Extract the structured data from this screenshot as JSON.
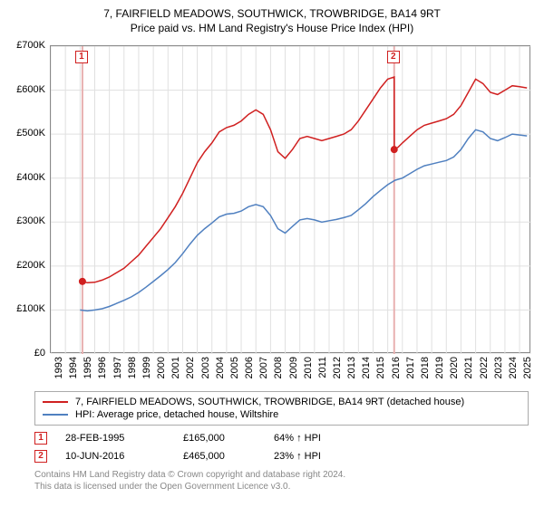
{
  "title": "7, FAIRFIELD MEADOWS, SOUTHWICK, TROWBRIDGE, BA14 9RT",
  "subtitle": "Price paid vs. HM Land Registry's House Price Index (HPI)",
  "chart": {
    "type": "line",
    "background_color": "#ffffff",
    "grid_color": "#e0e0e0",
    "border_color": "#888888",
    "xlim": [
      1993,
      2025.8
    ],
    "ylim": [
      0,
      700000
    ],
    "yticks": [
      0,
      100000,
      200000,
      300000,
      400000,
      500000,
      600000,
      700000
    ],
    "ytick_labels": [
      "£0",
      "£100K",
      "£200K",
      "£300K",
      "£400K",
      "£500K",
      "£600K",
      "£700K"
    ],
    "xticks": [
      1993,
      1994,
      1995,
      1996,
      1997,
      1998,
      1999,
      2000,
      2001,
      2002,
      2003,
      2004,
      2005,
      2006,
      2007,
      2008,
      2009,
      2010,
      2011,
      2012,
      2013,
      2014,
      2015,
      2016,
      2017,
      2018,
      2019,
      2020,
      2021,
      2022,
      2023,
      2024,
      2025
    ],
    "label_fontsize": 11,
    "line_width": 1.5,
    "series": [
      {
        "name": "property",
        "label": "7, FAIRFIELD MEADOWS, SOUTHWICK, TROWBRIDGE, BA14 9RT (detached house)",
        "color": "#d02020",
        "data": [
          [
            1995.16,
            165000
          ],
          [
            1995.5,
            162000
          ],
          [
            1996,
            163000
          ],
          [
            1996.5,
            168000
          ],
          [
            1997,
            175000
          ],
          [
            1997.5,
            185000
          ],
          [
            1998,
            195000
          ],
          [
            1998.5,
            210000
          ],
          [
            1999,
            225000
          ],
          [
            1999.5,
            245000
          ],
          [
            2000,
            265000
          ],
          [
            2000.5,
            285000
          ],
          [
            2001,
            310000
          ],
          [
            2001.5,
            335000
          ],
          [
            2002,
            365000
          ],
          [
            2002.5,
            400000
          ],
          [
            2003,
            435000
          ],
          [
            2003.5,
            460000
          ],
          [
            2004,
            480000
          ],
          [
            2004.5,
            505000
          ],
          [
            2005,
            515000
          ],
          [
            2005.5,
            520000
          ],
          [
            2006,
            530000
          ],
          [
            2006.5,
            545000
          ],
          [
            2007,
            555000
          ],
          [
            2007.5,
            545000
          ],
          [
            2008,
            510000
          ],
          [
            2008.5,
            460000
          ],
          [
            2009,
            445000
          ],
          [
            2009.5,
            465000
          ],
          [
            2010,
            490000
          ],
          [
            2010.5,
            495000
          ],
          [
            2011,
            490000
          ],
          [
            2011.5,
            485000
          ],
          [
            2012,
            490000
          ],
          [
            2012.5,
            495000
          ],
          [
            2013,
            500000
          ],
          [
            2013.5,
            510000
          ],
          [
            2014,
            530000
          ],
          [
            2014.5,
            555000
          ],
          [
            2015,
            580000
          ],
          [
            2015.5,
            605000
          ],
          [
            2016,
            625000
          ],
          [
            2016.44,
            630000
          ],
          [
            2016.45,
            465000
          ],
          [
            2016.7,
            470000
          ],
          [
            2017,
            480000
          ],
          [
            2017.5,
            495000
          ],
          [
            2018,
            510000
          ],
          [
            2018.5,
            520000
          ],
          [
            2019,
            525000
          ],
          [
            2019.5,
            530000
          ],
          [
            2020,
            535000
          ],
          [
            2020.5,
            545000
          ],
          [
            2021,
            565000
          ],
          [
            2021.5,
            595000
          ],
          [
            2022,
            625000
          ],
          [
            2022.5,
            615000
          ],
          [
            2023,
            595000
          ],
          [
            2023.5,
            590000
          ],
          [
            2024,
            600000
          ],
          [
            2024.5,
            610000
          ],
          [
            2025,
            608000
          ],
          [
            2025.5,
            605000
          ]
        ]
      },
      {
        "name": "hpi",
        "label": "HPI: Average price, detached house, Wiltshire",
        "color": "#5080c0",
        "data": [
          [
            1995,
            100000
          ],
          [
            1995.5,
            98000
          ],
          [
            1996,
            100000
          ],
          [
            1996.5,
            103000
          ],
          [
            1997,
            108000
          ],
          [
            1997.5,
            115000
          ],
          [
            1998,
            122000
          ],
          [
            1998.5,
            130000
          ],
          [
            1999,
            140000
          ],
          [
            1999.5,
            152000
          ],
          [
            2000,
            165000
          ],
          [
            2000.5,
            178000
          ],
          [
            2001,
            192000
          ],
          [
            2001.5,
            208000
          ],
          [
            2002,
            228000
          ],
          [
            2002.5,
            250000
          ],
          [
            2003,
            270000
          ],
          [
            2003.5,
            285000
          ],
          [
            2004,
            298000
          ],
          [
            2004.5,
            312000
          ],
          [
            2005,
            318000
          ],
          [
            2005.5,
            320000
          ],
          [
            2006,
            325000
          ],
          [
            2006.5,
            335000
          ],
          [
            2007,
            340000
          ],
          [
            2007.5,
            335000
          ],
          [
            2008,
            315000
          ],
          [
            2008.5,
            285000
          ],
          [
            2009,
            275000
          ],
          [
            2009.5,
            290000
          ],
          [
            2010,
            305000
          ],
          [
            2010.5,
            308000
          ],
          [
            2011,
            305000
          ],
          [
            2011.5,
            300000
          ],
          [
            2012,
            303000
          ],
          [
            2012.5,
            306000
          ],
          [
            2013,
            310000
          ],
          [
            2013.5,
            315000
          ],
          [
            2014,
            328000
          ],
          [
            2014.5,
            342000
          ],
          [
            2015,
            358000
          ],
          [
            2015.5,
            372000
          ],
          [
            2016,
            385000
          ],
          [
            2016.5,
            395000
          ],
          [
            2017,
            400000
          ],
          [
            2017.5,
            410000
          ],
          [
            2018,
            420000
          ],
          [
            2018.5,
            428000
          ],
          [
            2019,
            432000
          ],
          [
            2019.5,
            436000
          ],
          [
            2020,
            440000
          ],
          [
            2020.5,
            448000
          ],
          [
            2021,
            465000
          ],
          [
            2021.5,
            490000
          ],
          [
            2022,
            510000
          ],
          [
            2022.5,
            505000
          ],
          [
            2023,
            490000
          ],
          [
            2023.5,
            485000
          ],
          [
            2024,
            492000
          ],
          [
            2024.5,
            500000
          ],
          [
            2025,
            498000
          ],
          [
            2025.5,
            496000
          ]
        ]
      }
    ],
    "sale_markers": [
      {
        "n": "1",
        "x": 1995.16,
        "y": 165000,
        "vline": true
      },
      {
        "n": "2",
        "x": 2016.44,
        "y": 465000,
        "vline": true
      }
    ],
    "marker_dot_color": "#d02020",
    "marker_dot_radius": 4,
    "vline_color": "#e8b0b0"
  },
  "legend": {
    "rows": [
      {
        "color": "#d02020",
        "label_path": "chart.series.0.label"
      },
      {
        "color": "#5080c0",
        "label_path": "chart.series.1.label"
      }
    ]
  },
  "sales": [
    {
      "n": "1",
      "date": "28-FEB-1995",
      "price": "£165,000",
      "pct": "64% ↑ HPI"
    },
    {
      "n": "2",
      "date": "10-JUN-2016",
      "price": "£465,000",
      "pct": "23% ↑ HPI"
    }
  ],
  "footer": {
    "line1": "Contains HM Land Registry data © Crown copyright and database right 2024.",
    "line2": "This data is licensed under the Open Government Licence v3.0."
  }
}
